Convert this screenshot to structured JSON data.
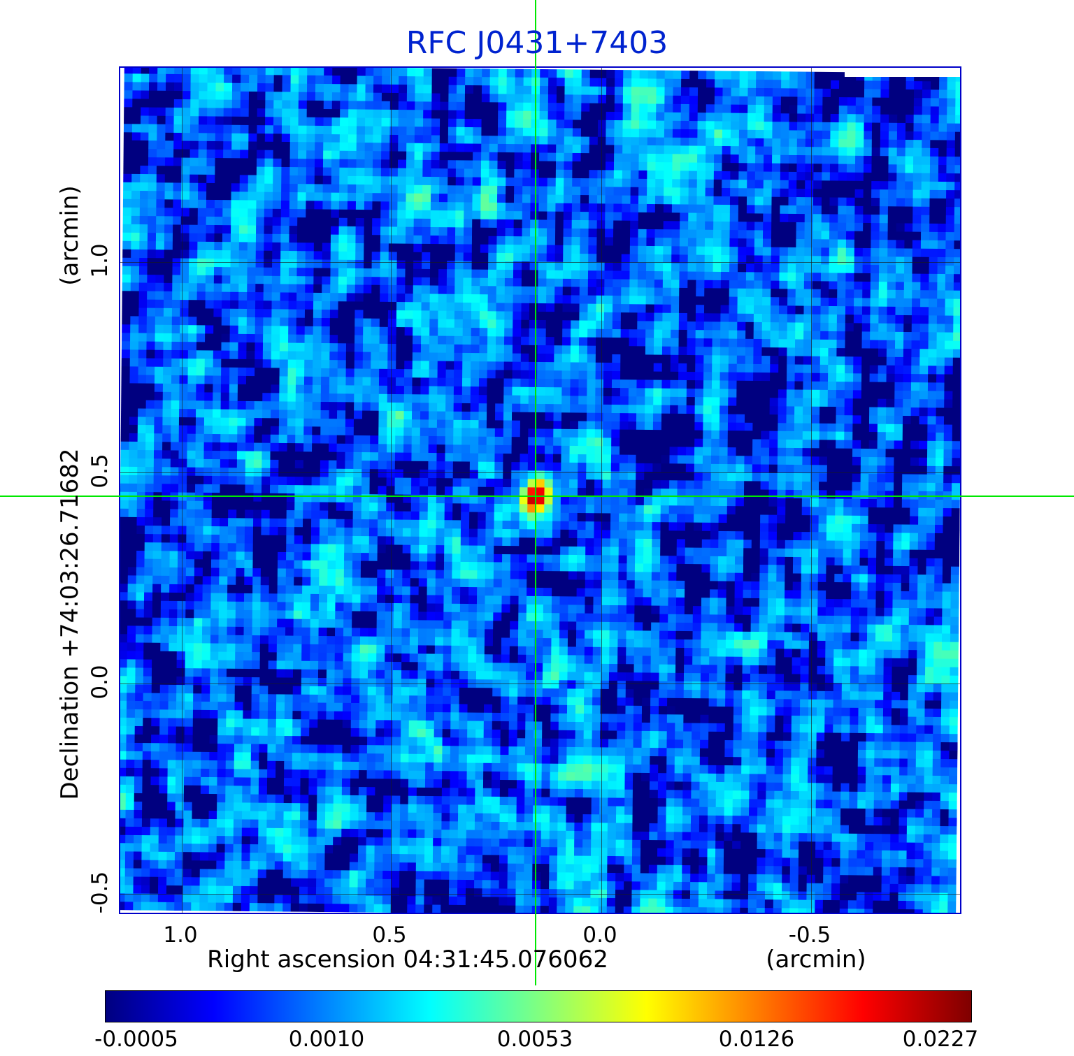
{
  "title": "RFC J0431+7403",
  "colors": {
    "title": "#0023cf",
    "frame": "#0000c8",
    "crosshair": "#00e800",
    "grid": "#1a1a1a"
  },
  "axes": {
    "x_label": "Right ascension  04:31:45.076062",
    "x_unit": "(arcmin)",
    "y_label": "Declination  +74:03:26.71682",
    "y_unit": "(arcmin)",
    "x_tick_labels": [
      "1.0",
      "0.5",
      "0.0",
      "-0.5"
    ],
    "y_tick_labels": [
      "1.0",
      "0.5",
      "0.0",
      "-0.5"
    ]
  },
  "colorbar": {
    "tick_labels": [
      "-0.0005",
      "0.0010",
      "0.0053",
      "0.0126",
      "0.0227"
    ],
    "colormap": "jet",
    "stops": [
      "#00007f",
      "#0000ff",
      "#0080ff",
      "#00ffff",
      "#80ff80",
      "#ffff00",
      "#ff8000",
      "#ff0000",
      "#7f0000"
    ]
  },
  "chart_data": {
    "type": "heatmap",
    "title": "RFC J0431+7403",
    "xlabel": "Right ascension 04:31:45.076062 (arcmin)",
    "ylabel": "Declination +74:03:26.71682 (arcmin)",
    "x_ticks": [
      1.0,
      0.5,
      0.0,
      -0.5
    ],
    "y_ticks": [
      1.0,
      0.5,
      0.0,
      -0.5
    ],
    "x_range": [
      1.147,
      -0.862
    ],
    "y_range": [
      1.462,
      -0.551
    ],
    "grid": true,
    "colormap": "jet",
    "value_scale": "quadratic",
    "vmin": -0.0005,
    "vmax": 0.0232,
    "value_ticks": [
      -0.0005,
      0.001,
      0.0053,
      0.0126,
      0.0227
    ],
    "background_noise": {
      "mean": 0.0006,
      "sigma": 0.0008
    },
    "source": {
      "x_arcmin": 0.153,
      "y_arcmin": 0.443,
      "peak": 0.0227,
      "sigma_x_arcmin": 0.019,
      "sigma_y_arcmin": 0.026,
      "position_angle_deg": -20
    },
    "crosshair": {
      "x_arcmin": 0.153,
      "y_arcmin": 0.443
    }
  }
}
